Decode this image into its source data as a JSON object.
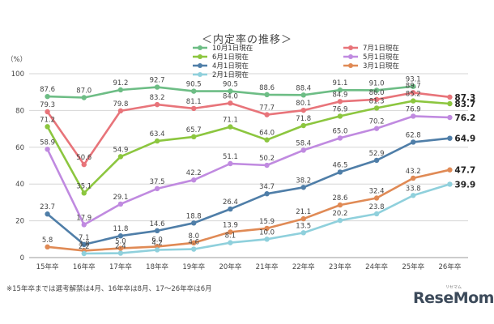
{
  "title": "＜内定率の推移＞",
  "footnote": "※15年卒までは選考解禁は4月、16年卒は8月、17～26年卒は6月",
  "watermark": "ReseMom",
  "watermark_sub": "リセマム",
  "chart_data": {
    "type": "line",
    "categories": [
      "15年卒",
      "16年卒",
      "17年卒",
      "18年卒",
      "19年卒",
      "20年卒",
      "21年卒",
      "22年卒",
      "23年卒",
      "24年卒",
      "25年卒",
      "26年卒"
    ],
    "ylabel": "（%）",
    "ylim": [
      0,
      100
    ],
    "yticks": [
      0,
      20,
      40,
      60,
      80,
      100
    ],
    "grid": true,
    "legend_position": "top-right",
    "series": [
      {
        "name": "10月1日現在",
        "color": "#6dbd85",
        "values": [
          87.6,
          87.0,
          91.2,
          92.7,
          90.5,
          90.5,
          88.6,
          88.4,
          91.1,
          91.0,
          93.1,
          null
        ],
        "labels": [
          "87.6",
          "87.0",
          "91.2",
          "92.7",
          "90.5",
          "90.5",
          "88.6",
          "88.4",
          "91.1",
          "91.0",
          "93.1",
          ""
        ]
      },
      {
        "name": "7月1日現在",
        "color": "#e8747a",
        "values": [
          79.3,
          50.6,
          79.8,
          83.2,
          81.1,
          84.0,
          77.7,
          80.1,
          84.9,
          86.0,
          89.7,
          87.3
        ],
        "labels": [
          "79.3",
          "50.6",
          "79.8",
          "83.2",
          "81.1",
          "84.0",
          "77.7",
          "80.1",
          "84.9",
          "86.0",
          "89.7",
          "87.3"
        ]
      },
      {
        "name": "6月1日現在",
        "color": "#8cc63f",
        "values": [
          71.2,
          35.1,
          54.9,
          63.4,
          65.7,
          71.1,
          64.0,
          71.8,
          76.9,
          81.3,
          85.2,
          83.7
        ],
        "labels": [
          "71.2",
          "35.1",
          "54.9",
          "63.4",
          "65.7",
          "71.1",
          "64.0",
          "71.8",
          "76.9",
          "81.3",
          "85.2",
          "83.7"
        ]
      },
      {
        "name": "5月1日現在",
        "color": "#c08ae0",
        "values": [
          58.9,
          17.9,
          29.1,
          37.5,
          42.2,
          51.1,
          50.2,
          58.4,
          65.0,
          70.2,
          76.9,
          76.2
        ],
        "labels": [
          "58.9",
          "17.9",
          "29.1",
          "37.5",
          "42.2",
          "51.1",
          "50.2",
          "58.4",
          "65.0",
          "70.2",
          "76.9",
          "76.2"
        ]
      },
      {
        "name": "4月1日現在",
        "color": "#4f7ea8",
        "values": [
          23.7,
          7.1,
          11.8,
          14.6,
          18.8,
          26.4,
          34.7,
          38.2,
          46.5,
          52.9,
          62.8,
          64.9
        ],
        "labels": [
          "23.7",
          "7.1",
          "11.8",
          "14.6",
          "18.8",
          "26.4",
          "34.7",
          "38.2",
          "46.5",
          "52.9",
          "62.8",
          "64.9"
        ]
      },
      {
        "name": "3月1日現在",
        "color": "#e08a55",
        "values": [
          5.8,
          3.8,
          5.0,
          6.0,
          8.0,
          13.9,
          15.9,
          21.1,
          28.6,
          32.4,
          43.2,
          47.7
        ],
        "labels": [
          "5.8",
          "3.8",
          "5.0",
          "6.0",
          "8.0",
          "13.9",
          "15.9",
          "21.1",
          "28.6",
          "32.4",
          "43.2",
          "47.7"
        ]
      },
      {
        "name": "2月1日現在",
        "color": "#8fd0dc",
        "values": [
          null,
          2.2,
          2.4,
          4.2,
          4.6,
          8.1,
          10.0,
          13.5,
          20.2,
          23.8,
          33.8,
          39.9
        ],
        "labels": [
          "",
          "2.2",
          "2.4",
          "4.2",
          "4.6",
          "8.1",
          "10.0",
          "13.5",
          "20.2",
          "23.8",
          "33.8",
          "39.9"
        ]
      }
    ]
  }
}
